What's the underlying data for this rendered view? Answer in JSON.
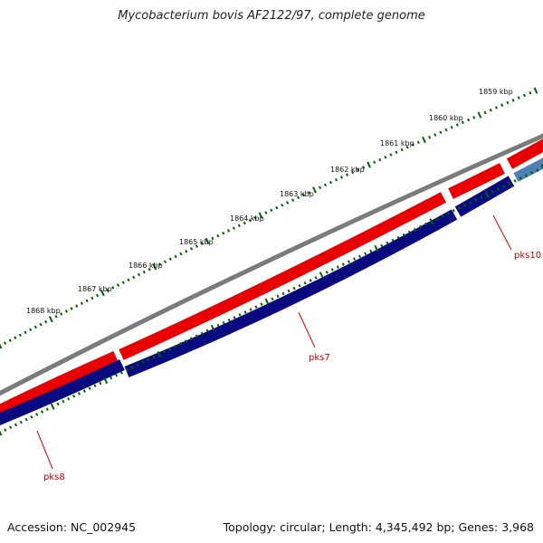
{
  "title": "Mycobacterium bovis AF2122/97, complete genome",
  "footer": {
    "accession": "Accession: NC_002945",
    "summary": "Topology: circular; Length: 4,345,492 bp; Genes: 3,968"
  },
  "kbp_ticks": [
    "1859 kbp",
    "1860 kbp",
    "1861 kbp",
    "1862 kbp",
    "1863 kbp",
    "1864 kbp",
    "1865 kbp",
    "1866 kbp",
    "1867 kbp",
    "1868 kbp"
  ],
  "gene_labels": [
    "pks10",
    "pks7",
    "pks8"
  ],
  "colors": {
    "backbone": "#777777",
    "forward_cds": "#ee0000",
    "reverse_cds": "#000080",
    "other_feature": "#4f7fb8",
    "tick": "#006400",
    "label": "#c00000"
  }
}
